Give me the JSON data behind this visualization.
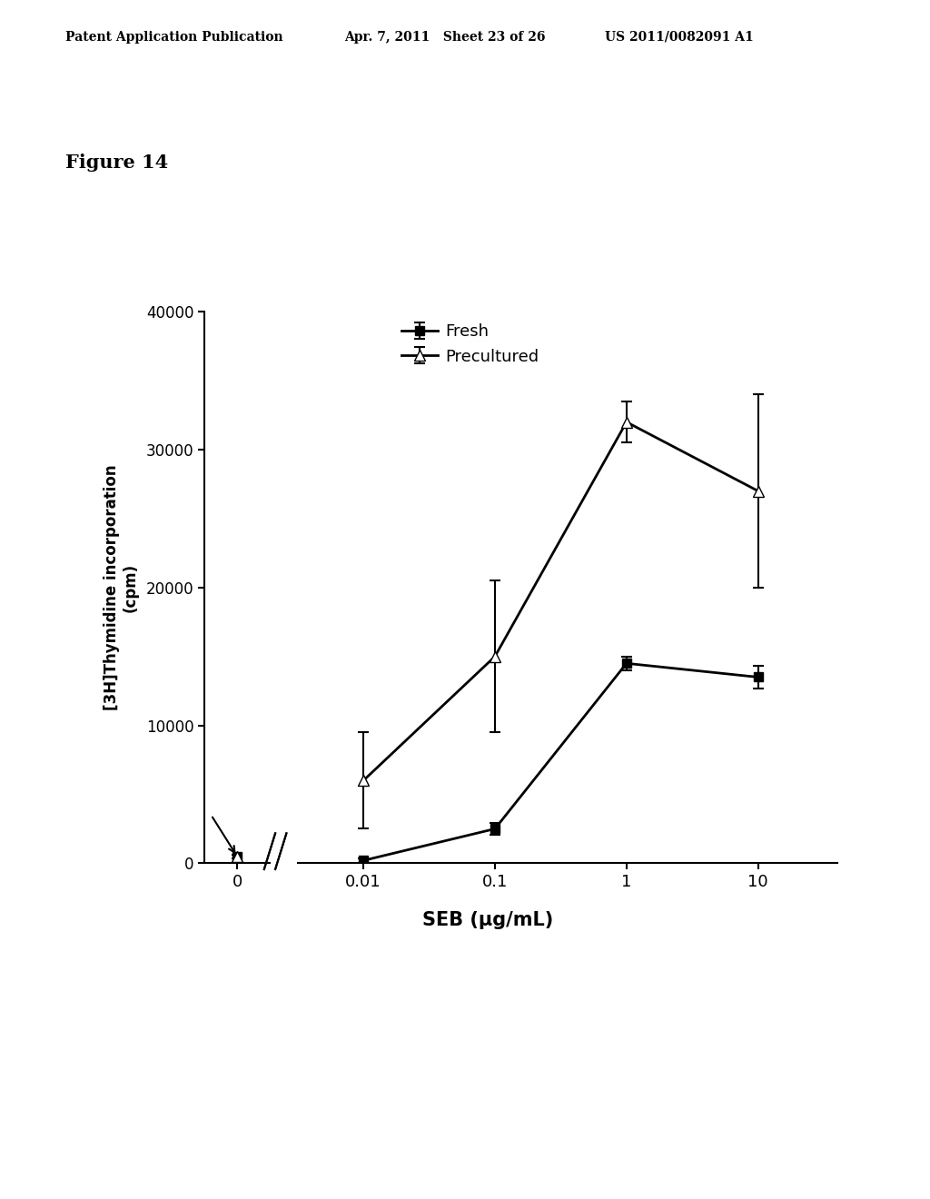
{
  "header_left": "Patent Application Publication",
  "header_mid": "Apr. 7, 2011   Sheet 23 of 26",
  "header_right": "US 2011/0082091 A1",
  "figure_label": "Figure 14",
  "xlabel": "SEB (μg/mL)",
  "ylabel": "[3H]Thymidine incorporation\n(cpm)",
  "fresh_y": [
    500,
    200,
    2500,
    14500,
    13500
  ],
  "fresh_yerr": [
    150,
    150,
    400,
    500,
    800
  ],
  "precultured_y": [
    500,
    6000,
    15000,
    32000,
    27000
  ],
  "precultured_yerr": [
    150,
    3500,
    5500,
    1500,
    7000
  ],
  "ylim": [
    0,
    40000
  ],
  "yticks": [
    0,
    10000,
    20000,
    30000,
    40000
  ],
  "xtick_labels": [
    "0",
    "0.01",
    "0.1",
    "1",
    "10"
  ],
  "line_color": "#000000",
  "background_color": "#ffffff",
  "legend_entries": [
    "Fresh",
    "Precultured"
  ],
  "figure_label_color": "#000000",
  "header_fontsize": 10,
  "figure_label_fontsize": 15
}
